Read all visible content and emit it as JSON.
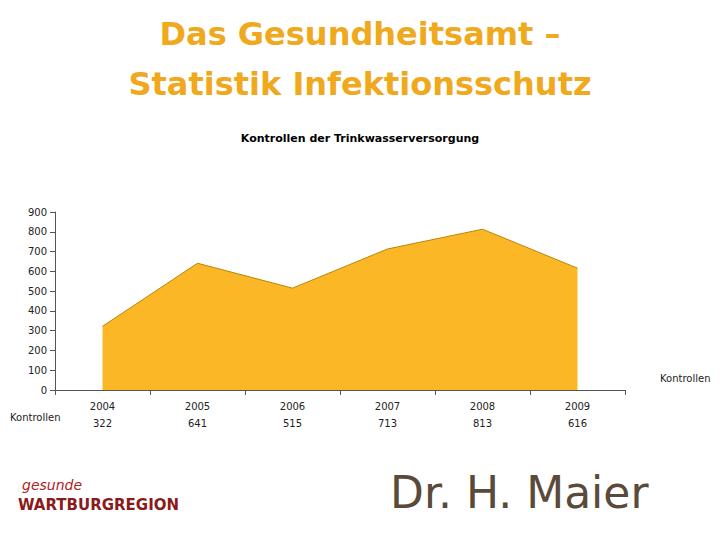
{
  "chart_data": {
    "type": "area",
    "title": "Kontrollen der Trinkwasserversorgung",
    "categories": [
      "2004",
      "2005",
      "2006",
      "2007",
      "2008",
      "2009"
    ],
    "series": [
      {
        "name": "Kontrollen",
        "color": "#FBB726",
        "values": [
          322,
          641,
          515,
          713,
          813,
          616
        ]
      }
    ],
    "ylim": [
      0,
      900
    ],
    "yticks": [
      0,
      100,
      200,
      300,
      400,
      500,
      600,
      700,
      800,
      900
    ],
    "grid": false,
    "data_labels": true
  },
  "slide": {
    "title": [
      "Das Gesundheitsamt –",
      "Statistik Infektionsschutz"
    ],
    "logo": [
      "gesunde",
      "WARTBURGREGION"
    ],
    "footer": "Dr. H. Maier"
  }
}
